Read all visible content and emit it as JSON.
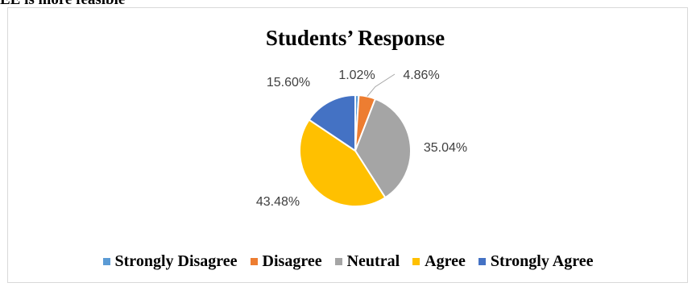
{
  "page": {
    "top_text": "EE is more feasible"
  },
  "chart_data": {
    "type": "pie",
    "title": "Students’ Response",
    "categories": [
      "Strongly Disagree",
      "Disagree",
      "Neutral",
      "Agree",
      "Strongly Agree"
    ],
    "values": [
      1.02,
      4.86,
      35.04,
      43.48,
      15.6
    ],
    "data_labels": [
      "1.02%",
      "4.86%",
      "35.04%",
      "43.48%",
      "15.60%"
    ],
    "colors": [
      "#5B9BD5",
      "#ED7D31",
      "#A5A5A5",
      "#FFC000",
      "#4472C4"
    ],
    "legend_position": "bottom",
    "grid": false
  }
}
